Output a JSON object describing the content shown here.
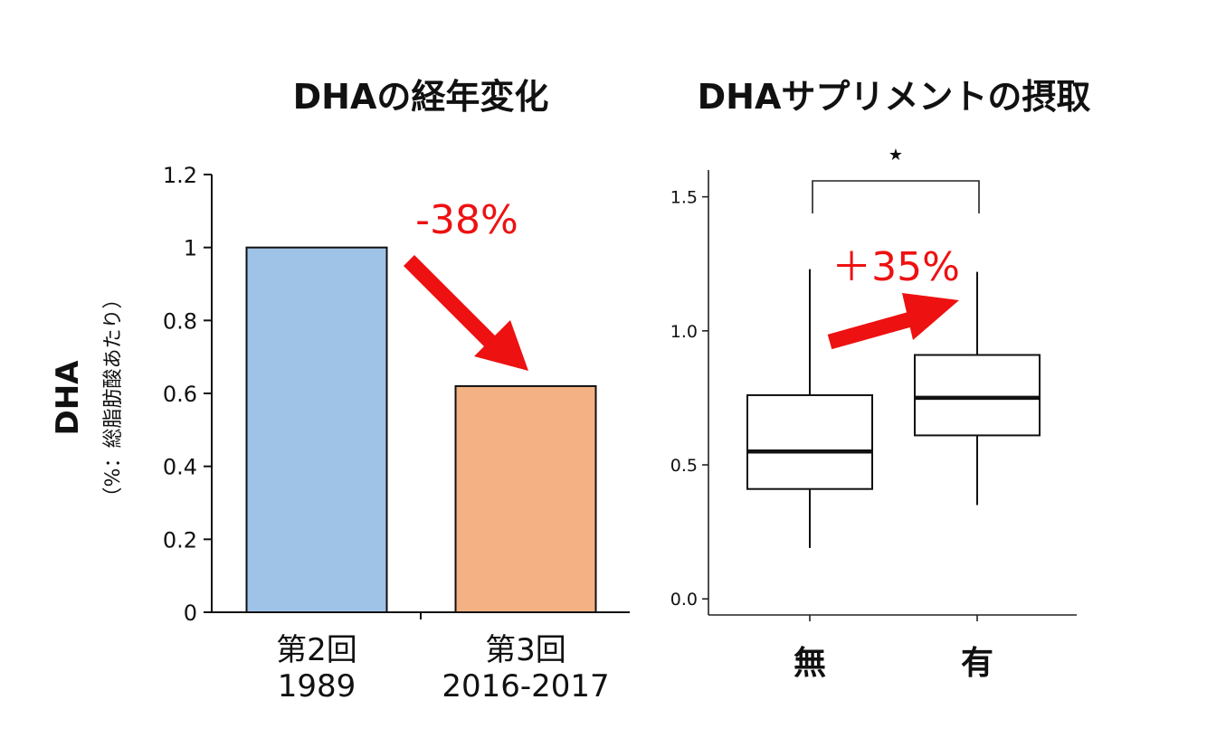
{
  "chart_data": [
    {
      "type": "bar",
      "title": "DHAの経年変化",
      "ylabel": "DHA",
      "ylabel_sub": "（%：総脂肪酸あたり）",
      "ylim": [
        0,
        1.2
      ],
      "yticks": [
        0,
        0.2,
        0.4,
        0.6,
        0.8,
        1,
        1.2
      ],
      "ytick_labels": [
        "0",
        "0.2",
        "0.4",
        "0.6",
        "0.8",
        "1",
        "1.2"
      ],
      "categories": [
        {
          "line1": "第2回",
          "line2": "1989"
        },
        {
          "line1": "第3回",
          "line2": "2016-2017"
        }
      ],
      "values": [
        1.0,
        0.62
      ],
      "colors": [
        "#9fc3e7",
        "#f4b183"
      ],
      "annotation": "-38%",
      "annotation_color": "#ee1111",
      "grid": false
    },
    {
      "type": "box",
      "title": "DHAサプリメントの摂取",
      "ylim": [
        -0.06,
        1.6
      ],
      "yticks": [
        0.0,
        0.5,
        1.0,
        1.5
      ],
      "ytick_labels": [
        "0.0",
        "0.5",
        "1.0",
        "1.5"
      ],
      "categories": [
        "無",
        "有"
      ],
      "boxes": [
        {
          "whisker_low": 0.19,
          "q1": 0.41,
          "median": 0.55,
          "q3": 0.76,
          "whisker_high": 1.23
        },
        {
          "whisker_low": 0.35,
          "q1": 0.61,
          "median": 0.75,
          "q3": 0.91,
          "whisker_high": 1.22
        }
      ],
      "significance": "★",
      "annotation": "＋35%",
      "annotation_color": "#ee1111",
      "grid": false
    }
  ]
}
